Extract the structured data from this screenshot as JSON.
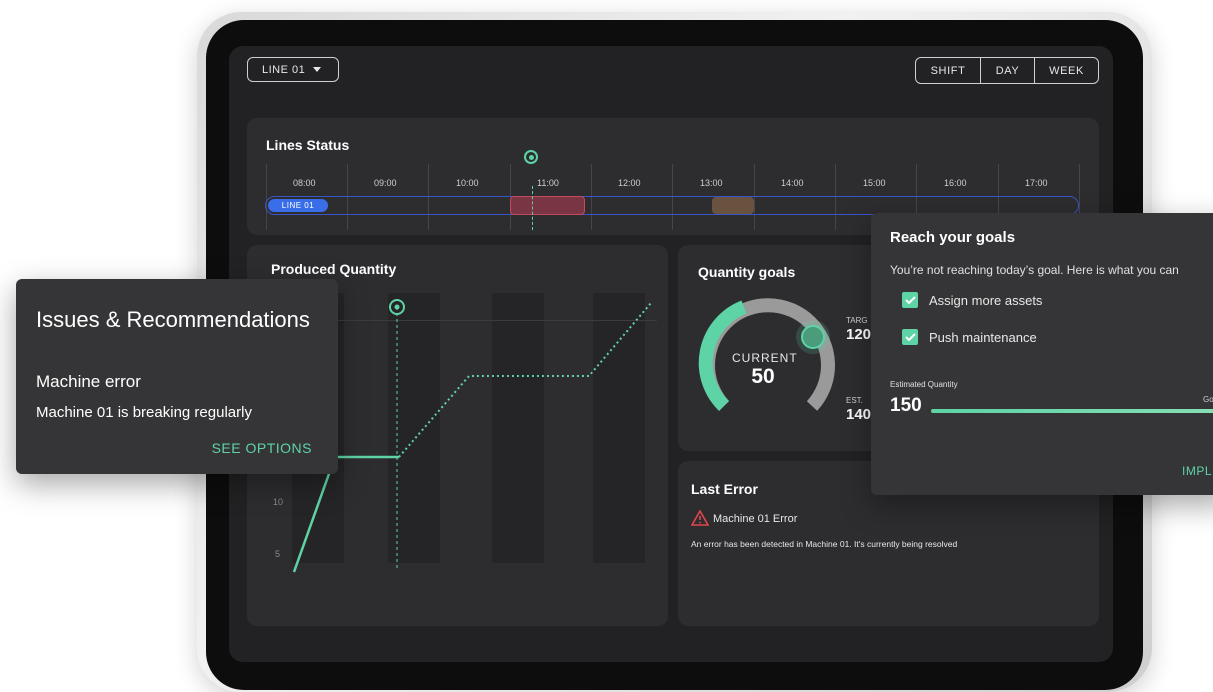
{
  "header": {
    "line_select": "LINE 01",
    "period_options": [
      "SHIFT",
      "DAY",
      "WEEK"
    ]
  },
  "lines_status": {
    "title": "Lines Status",
    "hours": [
      "08:00",
      "09:00",
      "10:00",
      "11:00",
      "12:00",
      "13:00",
      "14:00",
      "15:00",
      "16:00",
      "17:00"
    ],
    "line_label": "LINE 01"
  },
  "produced": {
    "title": "Produced Quantity",
    "y_ticks": [
      "10",
      "5"
    ]
  },
  "goals": {
    "title": "Quantity goals",
    "current_label": "CURRENT",
    "current_value": "50",
    "target_label": "TARG",
    "target_value": "120",
    "est_label": "EST.",
    "est_value": "140"
  },
  "last_error": {
    "title": "Last Error",
    "error_name": "Machine 01 Error",
    "description": "An error has been detected in Machine 01. It's currently being resolved"
  },
  "issues": {
    "title": "Issues & Recommendations",
    "subtitle": "Machine error",
    "detail": "Machine 01 is breaking regularly",
    "action": "SEE OPTIONS"
  },
  "reach": {
    "title": "Reach your goals",
    "message": "You’re not reaching today’s goal. Here is what you can",
    "options": [
      "Assign more assets",
      "Push maintenance"
    ],
    "estimated_label": "Estimated Quantity",
    "estimated_value": "150",
    "goal_label": "Go",
    "action": "IMPLE"
  },
  "colors": {
    "accent_green": "#5ed3a6",
    "line_blue": "#3a6ee8",
    "error_red": "#e0474c",
    "warn_brown": "#8a6a4a"
  }
}
